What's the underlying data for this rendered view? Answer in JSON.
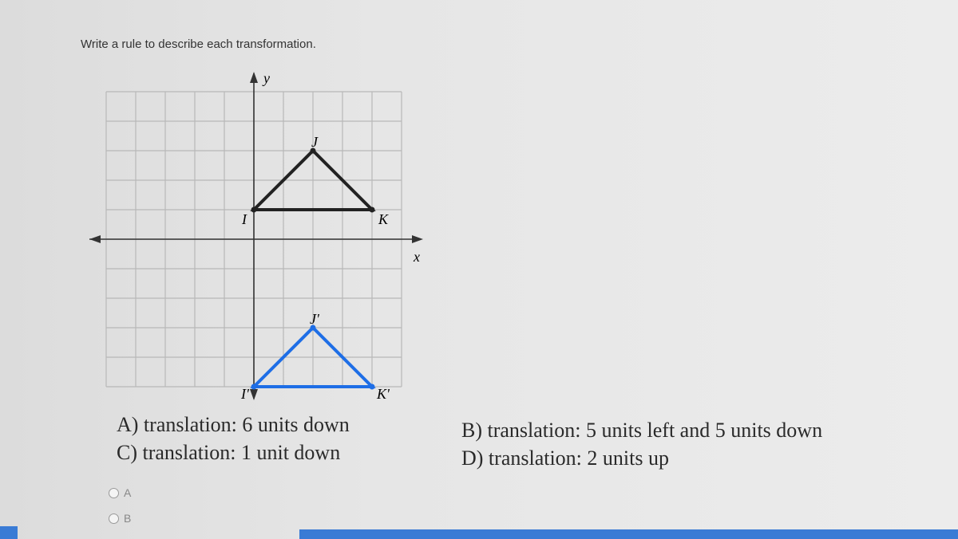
{
  "question": "Write a rule to describe each transformation.",
  "graph": {
    "y_axis_label": "y",
    "x_axis_label": "x",
    "point_labels": {
      "J": "J",
      "K": "K",
      "I": "I",
      "J_prime": "J'",
      "K_prime": "K'",
      "I_prime": "I'"
    }
  },
  "choices": [
    "A) translation: 6 units down",
    "B) translation: 5 units left and 5 units down",
    "C) translation: 1 unit down",
    "D) translation: 2 units up"
  ],
  "options": [
    "A",
    "B"
  ]
}
